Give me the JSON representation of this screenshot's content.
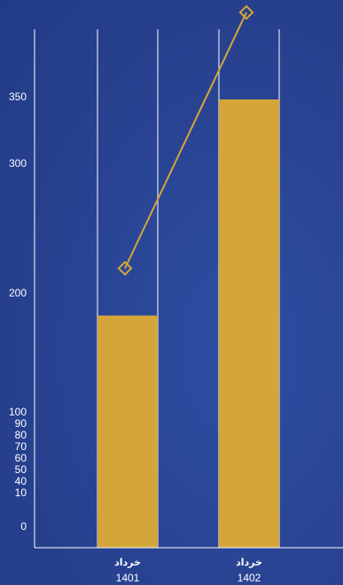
{
  "chart_data": {
    "type": "bar",
    "categories": [
      {
        "label": "خرداد",
        "sub": "1401"
      },
      {
        "label": "خرداد",
        "sub": "1402"
      }
    ],
    "series": [
      {
        "type": "bar",
        "values": [
          181,
          348
        ],
        "color": "#d4a63a"
      },
      {
        "type": "line",
        "values": [
          219,
          422
        ],
        "color": "#d4a63a"
      }
    ],
    "y_ticks": [
      0,
      10,
      40,
      50,
      60,
      70,
      80,
      90,
      100,
      200,
      300,
      350
    ],
    "background": "#2a4494",
    "axis_color": "#ffffff",
    "grid": "vertical lines at bar edges"
  }
}
